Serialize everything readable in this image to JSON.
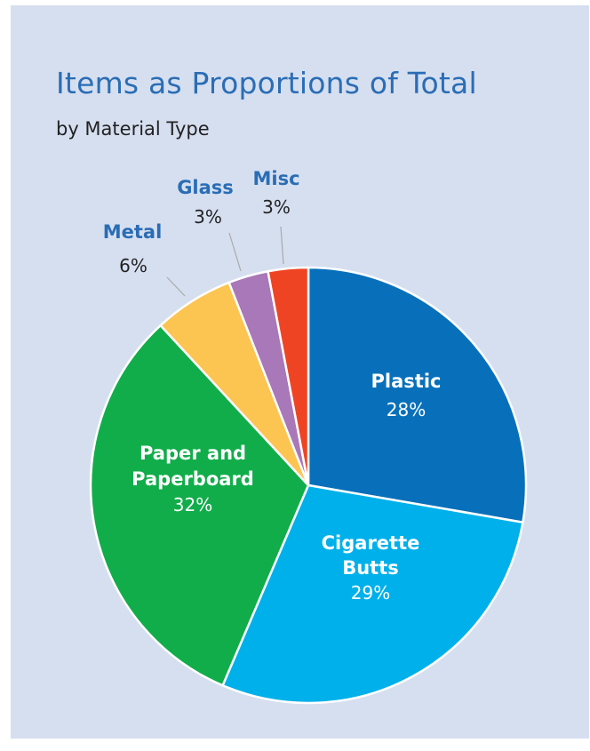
{
  "title": "Items as Proportions of Total",
  "subtitle": "by Material Type",
  "chart_data": {
    "type": "pie",
    "title": "Items as Proportions of Total",
    "subtitle": "by Material Type",
    "start_angle_deg": 0,
    "direction": "clockwise",
    "slices": [
      {
        "name": "Plastic",
        "label_lines": [
          "Plastic"
        ],
        "value": 28,
        "pct_label": "28%",
        "color": "#0870ba",
        "label_style": "inside"
      },
      {
        "name": "Cigarette Butts",
        "label_lines": [
          "Cigarette",
          "Butts"
        ],
        "value": 29,
        "pct_label": "29%",
        "color": "#00b0ea",
        "label_style": "inside"
      },
      {
        "name": "Paper and Paperboard",
        "label_lines": [
          "Paper and",
          "Paperboard"
        ],
        "value": 32,
        "pct_label": "32%",
        "color": "#11ad4a",
        "label_style": "inside"
      },
      {
        "name": "Metal",
        "label_lines": [
          "Metal"
        ],
        "value": 6,
        "pct_label": "6%",
        "color": "#fcc451",
        "label_style": "outside"
      },
      {
        "name": "Glass",
        "label_lines": [
          "Glass"
        ],
        "value": 3,
        "pct_label": "3%",
        "color": "#a978b8",
        "label_style": "outside"
      },
      {
        "name": "Misc",
        "label_lines": [
          "Misc"
        ],
        "value": 3,
        "pct_label": "3%",
        "color": "#ef4423",
        "label_style": "outside"
      }
    ],
    "colors": {
      "background": "#d6dff0",
      "title": "#2a6db5",
      "outside_label": "#2a6db5"
    }
  }
}
